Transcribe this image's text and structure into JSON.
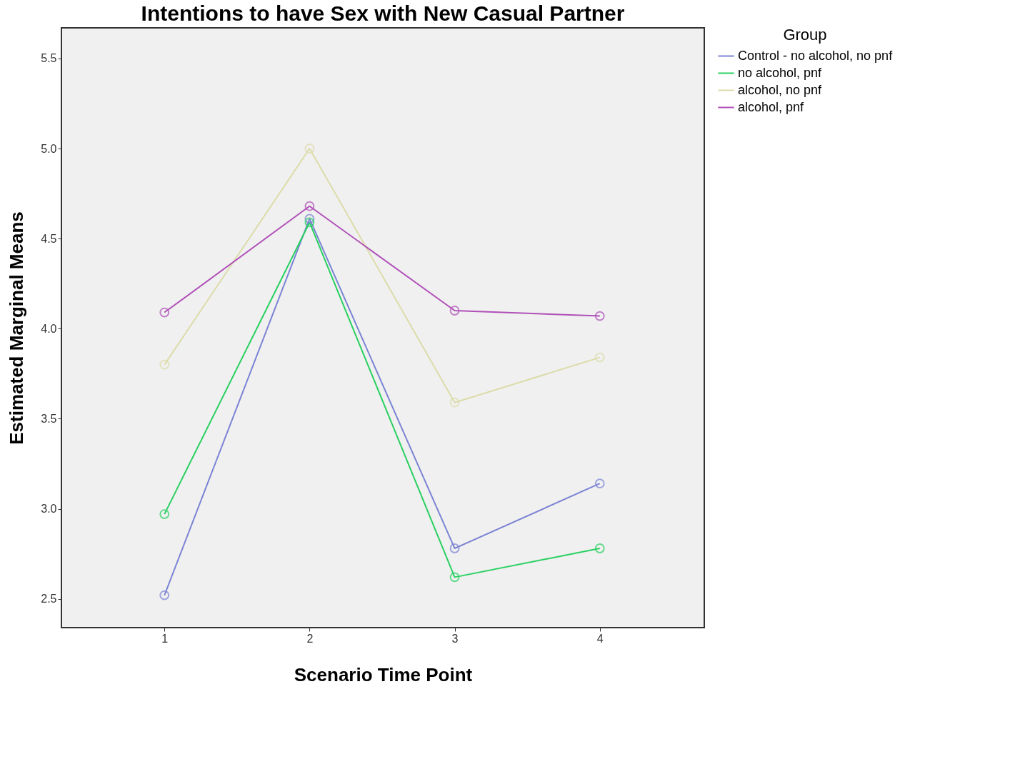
{
  "chart_data": {
    "type": "line",
    "title": "Intentions to have Sex with New Casual Partner",
    "xlabel": "Scenario Time Point",
    "ylabel": "Estimated Marginal Means",
    "legend_title": "Group",
    "x": [
      1,
      2,
      3,
      4
    ],
    "series": [
      {
        "name": "Control - no alcohol, no pnf",
        "color": "#7b84d4",
        "values": [
          2.52,
          4.61,
          2.78,
          3.14
        ]
      },
      {
        "name": "no alcohol, pnf",
        "color": "#28d060",
        "values": [
          2.97,
          4.59,
          2.62,
          2.78
        ]
      },
      {
        "name": "alcohol, no pnf",
        "color": "#dcdcaa",
        "values": [
          3.8,
          5.0,
          3.59,
          3.84
        ]
      },
      {
        "name": "alcohol, pnf",
        "color": "#b050b8",
        "values": [
          4.09,
          4.68,
          4.1,
          4.07
        ]
      }
    ],
    "xlim": [
      0.29,
      4.72
    ],
    "xticks": [
      1,
      2,
      3,
      4
    ],
    "ylim": [
      2.34,
      5.67
    ],
    "yticks": [
      {
        "value": 2.5,
        "label": "2.5"
      },
      {
        "value": 3,
        "label": "3.0"
      },
      {
        "value": 3.5,
        "label": "3.5"
      },
      {
        "value": 4,
        "label": "4.0"
      },
      {
        "value": 4.5,
        "label": "4.5"
      },
      {
        "value": 5,
        "label": "5.0"
      },
      {
        "value": 5.5,
        "label": "5.5"
      }
    ],
    "grid": false,
    "legend": "top right",
    "marker": "circle",
    "line_style": "solid"
  }
}
